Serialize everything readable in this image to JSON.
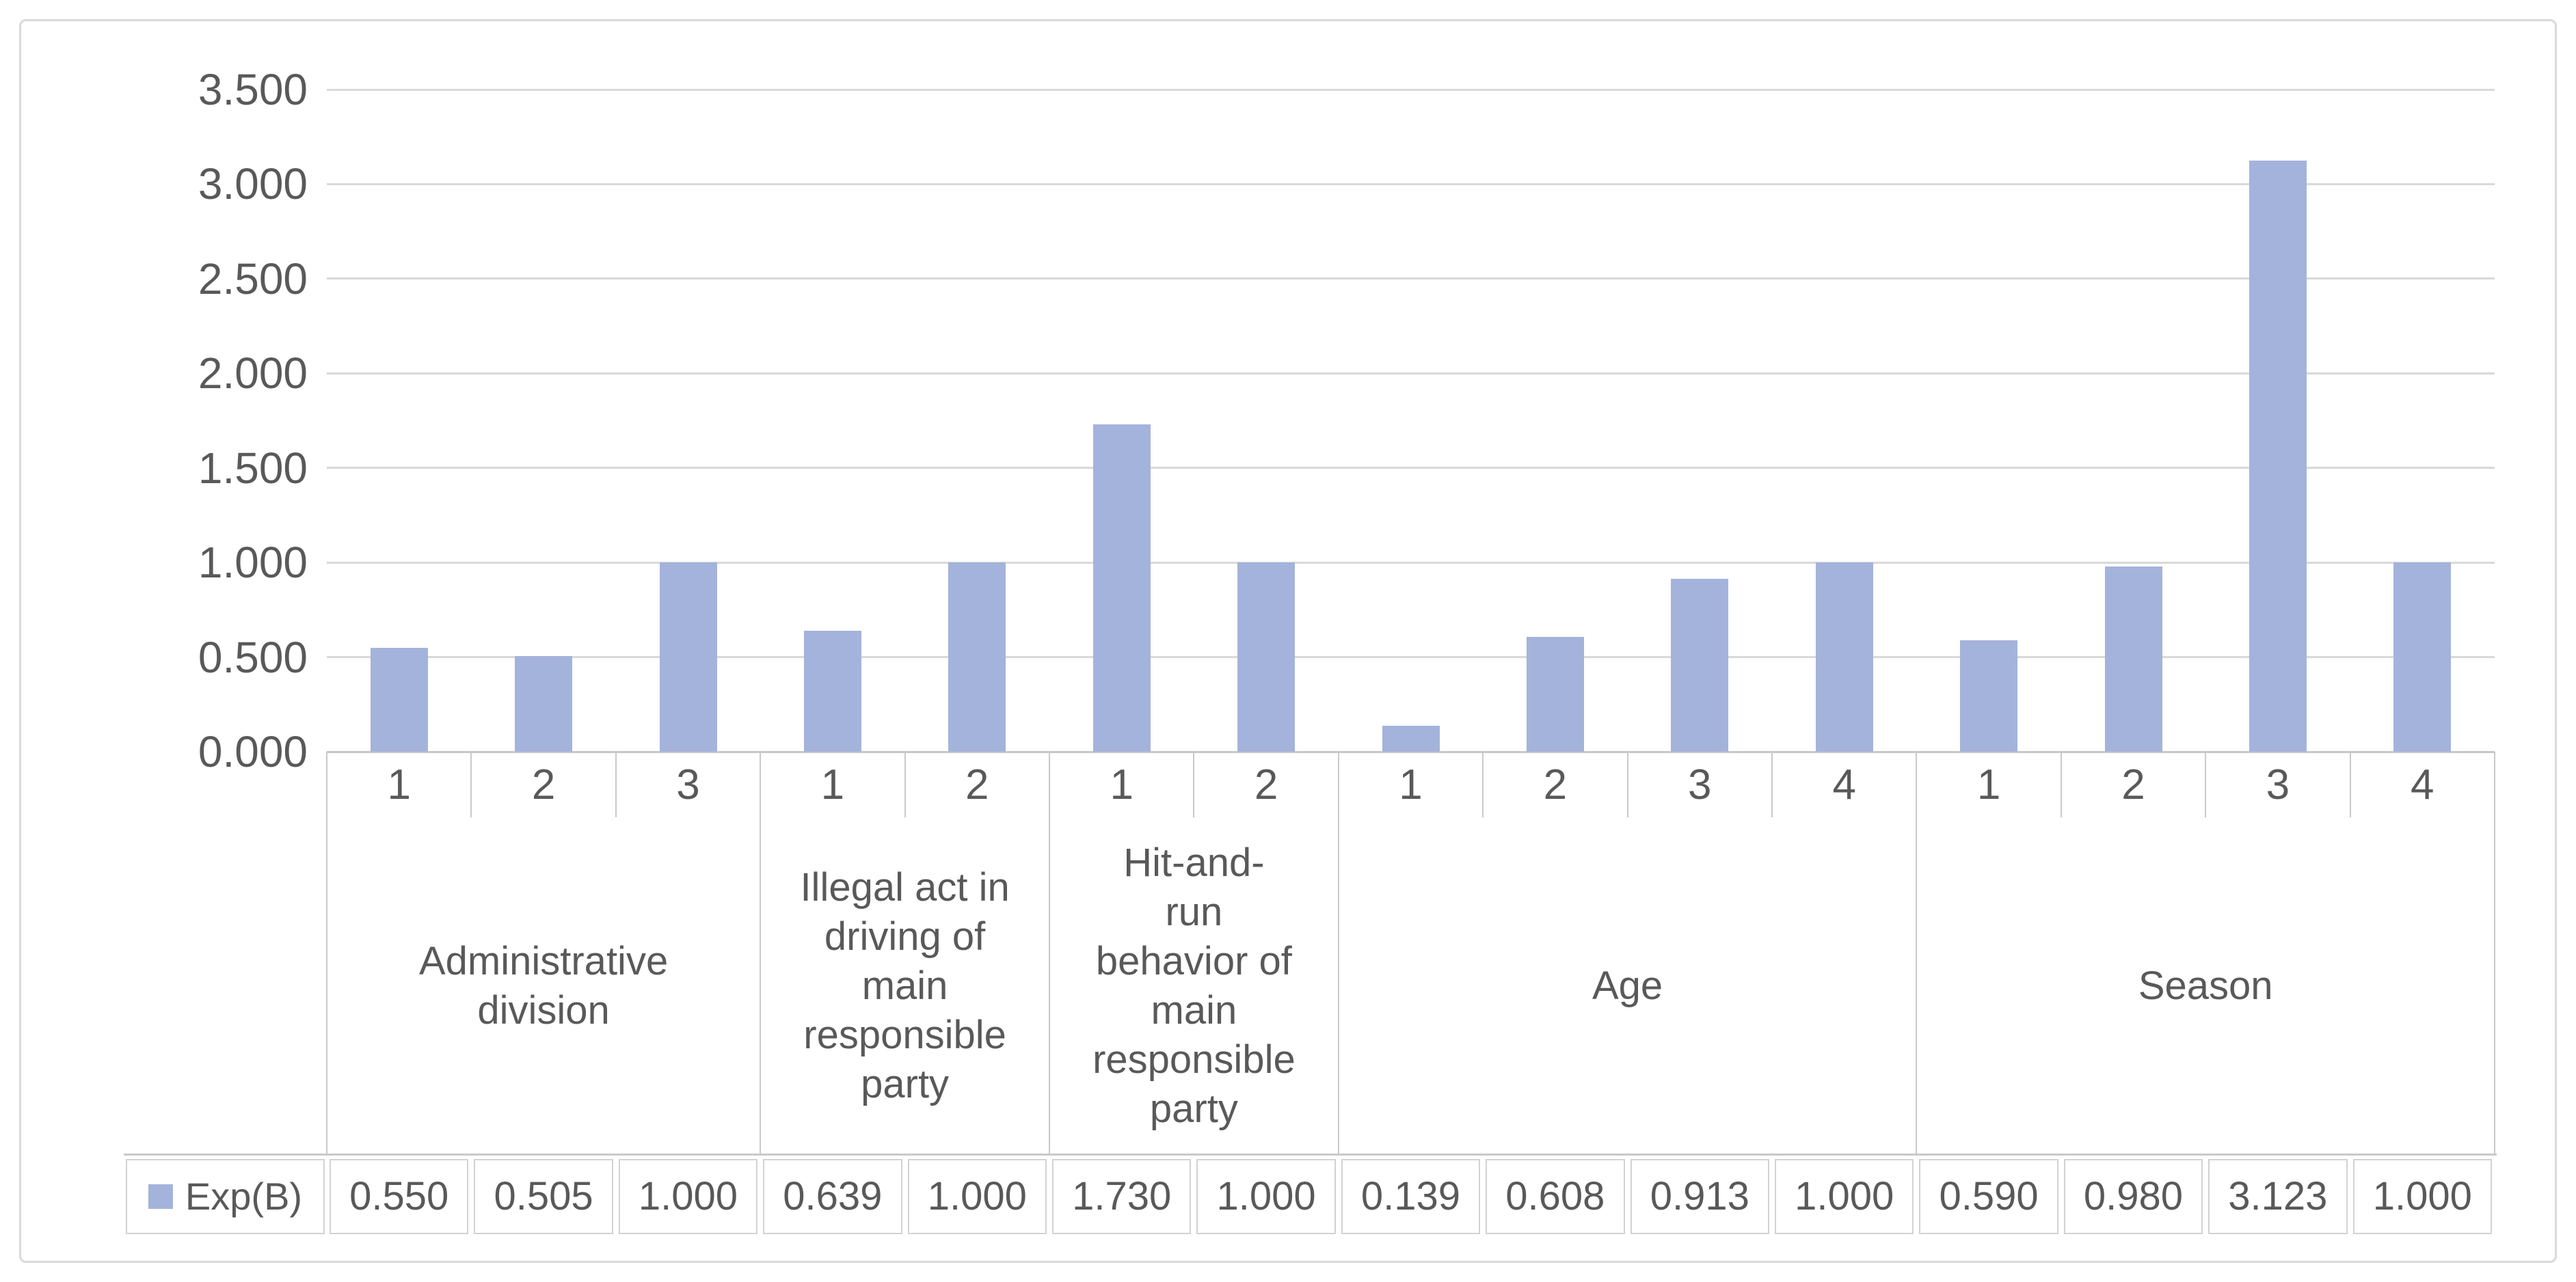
{
  "chart_data": {
    "type": "bar",
    "title": "",
    "legend": {
      "label": "Exp(B)",
      "position": "bottom-left data table key"
    },
    "y_axis": {
      "min": 0.0,
      "max": 3.5,
      "step": 0.5,
      "grid": true,
      "tick_labels": [
        "0.000",
        "0.500",
        "1.000",
        "1.500",
        "2.000",
        "2.500",
        "3.000",
        "3.500"
      ]
    },
    "groups": [
      {
        "label": "Administrative\ndivision",
        "ticks": [
          "1",
          "2",
          "3"
        ]
      },
      {
        "label": "Illegal act in\ndriving of\nmain\nresponsible\nparty",
        "ticks": [
          "1",
          "2"
        ]
      },
      {
        "label": "Hit-and-\nrun\nbehavior of\nmain\nresponsible\nparty",
        "ticks": [
          "1",
          "2"
        ]
      },
      {
        "label": "Age",
        "ticks": [
          "1",
          "2",
          "3",
          "4"
        ]
      },
      {
        "label": "Season",
        "ticks": [
          "1",
          "2",
          "3",
          "4"
        ]
      }
    ],
    "series": [
      {
        "name": "Exp(B)",
        "values": [
          0.55,
          0.505,
          1.0,
          0.639,
          1.0,
          1.73,
          1.0,
          0.139,
          0.608,
          0.913,
          1.0,
          0.59,
          0.98,
          3.123,
          1.0
        ]
      }
    ],
    "value_labels": [
      "0.550",
      "0.505",
      "1.000",
      "0.639",
      "1.000",
      "1.730",
      "1.000",
      "0.139",
      "0.608",
      "0.913",
      "1.000",
      "0.590",
      "0.980",
      "3.123",
      "1.000"
    ]
  },
  "colors": {
    "bar": "#A4B3DB",
    "grid": "#D9D9D9",
    "axis_line": "#C7C7C7",
    "table_line": "#C9C9C9",
    "cell_border": "#D2D2D2",
    "text": "#595959",
    "frame_border": "#D9D9D9",
    "background": "#FFFFFF"
  }
}
